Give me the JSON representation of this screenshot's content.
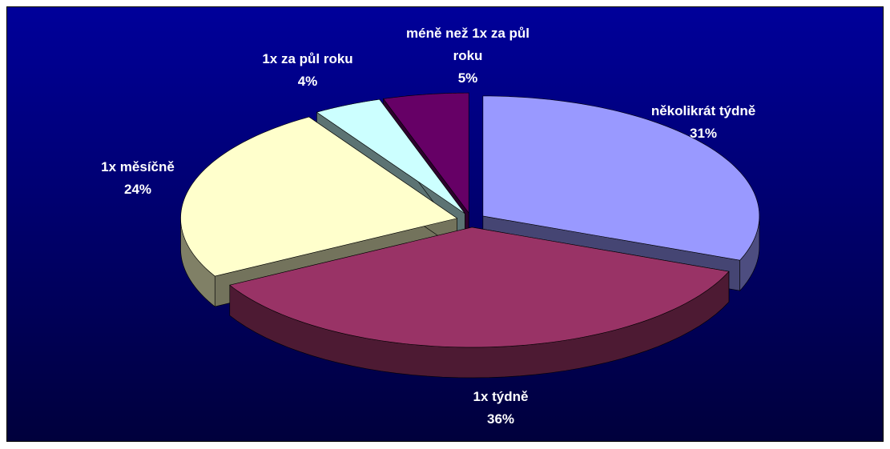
{
  "chart_data": {
    "type": "pie",
    "categories": [
      "několikrát týdně",
      "1x týdně",
      "1x měsíčně",
      "1x za půl roku",
      "méně než 1x za půl roku"
    ],
    "values": [
      31,
      36,
      24,
      4,
      5
    ],
    "value_labels": [
      "31%",
      "36%",
      "24%",
      "4%",
      "5%"
    ],
    "colors": [
      "#9999ff",
      "#993366",
      "#ffffcc",
      "#ccffff",
      "#660066"
    ]
  }
}
